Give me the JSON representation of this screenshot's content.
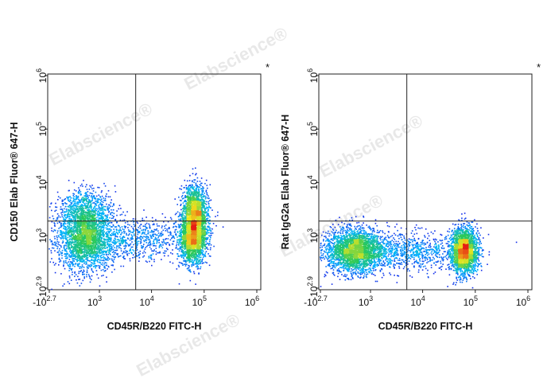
{
  "watermark": "Elabscience",
  "watermark_mark": "®",
  "chart_data": [
    {
      "type": "scatter",
      "subtype": "flow-cytometry-density",
      "title": "",
      "corner_mark": "*",
      "xlabel": "CD45R/B220 FITC-H",
      "ylabel": "CD150 Elab Fluor® 647-H",
      "x_scale": "biexponential",
      "y_scale": "biexponential",
      "x_ticks": [
        {
          "base": "-10",
          "exp": "2.7",
          "value": -501
        },
        {
          "base": "10",
          "exp": "3",
          "value": 1000
        },
        {
          "base": "10",
          "exp": "4",
          "value": 10000
        },
        {
          "base": "10",
          "exp": "5",
          "value": 100000
        },
        {
          "base": "10",
          "exp": "6",
          "value": 1000000
        }
      ],
      "y_ticks": [
        {
          "base": "-10",
          "exp": "2.9",
          "value": -794
        },
        {
          "base": "10",
          "exp": "3",
          "value": 1000
        },
        {
          "base": "10",
          "exp": "4",
          "value": 10000
        },
        {
          "base": "10",
          "exp": "5",
          "value": 100000
        },
        {
          "base": "10",
          "exp": "6",
          "value": 1000000
        }
      ],
      "quadrant_gate": {
        "x": 5000,
        "y": 1900
      },
      "populations": [
        {
          "x_center": 500,
          "y_center": 900,
          "x_spread": 0.45,
          "y_spread": 0.5,
          "events": 2400,
          "peak": "high"
        },
        {
          "x_center": 500,
          "y_center": 3000,
          "x_spread": 0.4,
          "y_spread": 0.35,
          "events": 700,
          "peak": "low"
        },
        {
          "x_center": 5000,
          "y_center": 900,
          "x_spread": 0.8,
          "y_spread": 0.35,
          "events": 700,
          "peak": "low"
        },
        {
          "x_center": 60000,
          "y_center": 900,
          "x_spread": 0.22,
          "y_spread": 0.4,
          "events": 1800,
          "peak": "high"
        },
        {
          "x_center": 65000,
          "y_center": 3000,
          "x_spread": 0.2,
          "y_spread": 0.4,
          "events": 1500,
          "peak": "high"
        }
      ]
    },
    {
      "type": "scatter",
      "subtype": "flow-cytometry-density",
      "title": "",
      "corner_mark": "*",
      "xlabel": "CD45R/B220 FITC-H",
      "ylabel": "Rat IgG2a Elab Fluor® 647-H",
      "x_scale": "biexponential",
      "y_scale": "biexponential",
      "x_ticks": [
        {
          "base": "-10",
          "exp": "2.7",
          "value": -501
        },
        {
          "base": "10",
          "exp": "3",
          "value": 1000
        },
        {
          "base": "10",
          "exp": "4",
          "value": 10000
        },
        {
          "base": "10",
          "exp": "5",
          "value": 100000
        },
        {
          "base": "10",
          "exp": "6",
          "value": 1000000
        }
      ],
      "y_ticks": [
        {
          "base": "-10",
          "exp": "2.9",
          "value": -794
        },
        {
          "base": "10",
          "exp": "3",
          "value": 1000
        },
        {
          "base": "10",
          "exp": "4",
          "value": 10000
        },
        {
          "base": "10",
          "exp": "5",
          "value": 100000
        },
        {
          "base": "10",
          "exp": "6",
          "value": 1000000
        }
      ],
      "quadrant_gate": {
        "x": 5000,
        "y": 1900
      },
      "populations": [
        {
          "x_center": 450,
          "y_center": 500,
          "x_spread": 0.45,
          "y_spread": 0.35,
          "events": 2600,
          "peak": "high"
        },
        {
          "x_center": 5000,
          "y_center": 500,
          "x_spread": 0.8,
          "y_spread": 0.3,
          "events": 800,
          "peak": "low"
        },
        {
          "x_center": 60000,
          "y_center": 500,
          "x_spread": 0.22,
          "y_spread": 0.35,
          "events": 2200,
          "peak": "high"
        }
      ]
    }
  ]
}
